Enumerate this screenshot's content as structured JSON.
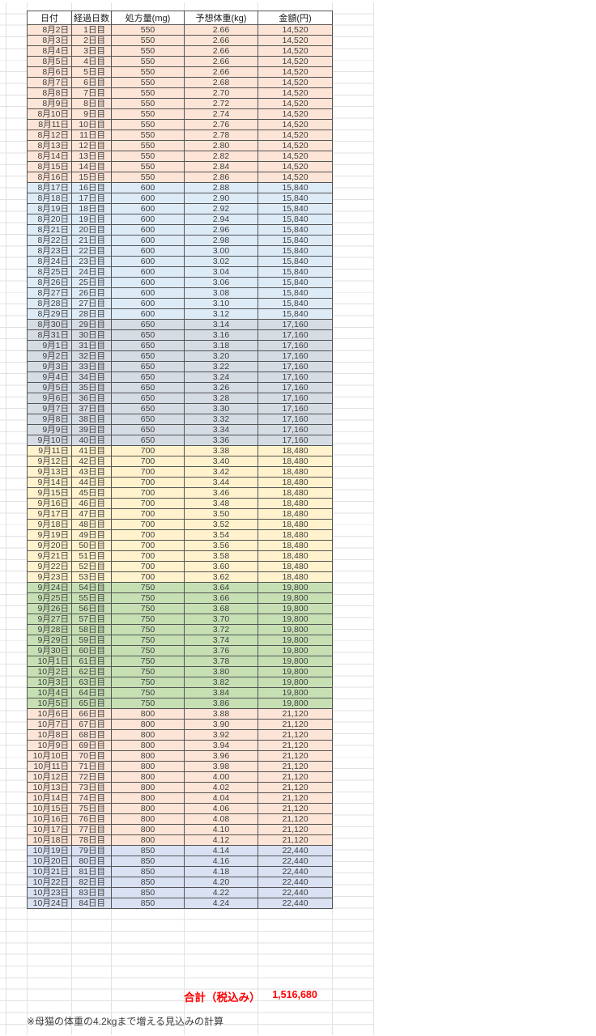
{
  "sheet": {
    "headers": [
      "日付",
      "経過日数",
      "処方量(mg)",
      "予想体重(kg)",
      "金額(円)"
    ],
    "section_colors": {
      "salmon": "#FCE4D6",
      "blue": "#DDEBF7",
      "gray": "#D6DCE4",
      "yellow": "#FFF2CC",
      "green": "#C6E0B4",
      "lavender": "#D9E1F2"
    },
    "rows": [
      [
        "8月2日",
        "1日目",
        "550",
        "2.66",
        "14,520",
        "salmon"
      ],
      [
        "8月3日",
        "2日目",
        "550",
        "2.66",
        "14,520",
        "salmon"
      ],
      [
        "8月4日",
        "3日目",
        "550",
        "2.66",
        "14,520",
        "salmon"
      ],
      [
        "8月5日",
        "4日目",
        "550",
        "2.66",
        "14,520",
        "salmon"
      ],
      [
        "8月6日",
        "5日目",
        "550",
        "2.66",
        "14,520",
        "salmon"
      ],
      [
        "8月7日",
        "6日目",
        "550",
        "2.68",
        "14,520",
        "salmon"
      ],
      [
        "8月8日",
        "7日目",
        "550",
        "2.70",
        "14,520",
        "salmon"
      ],
      [
        "8月9日",
        "8日目",
        "550",
        "2.72",
        "14,520",
        "salmon"
      ],
      [
        "8月10日",
        "9日目",
        "550",
        "2.74",
        "14,520",
        "salmon"
      ],
      [
        "8月11日",
        "10日目",
        "550",
        "2.76",
        "14,520",
        "salmon"
      ],
      [
        "8月12日",
        "11日目",
        "550",
        "2.78",
        "14,520",
        "salmon"
      ],
      [
        "8月13日",
        "12日目",
        "550",
        "2.80",
        "14,520",
        "salmon"
      ],
      [
        "8月14日",
        "13日目",
        "550",
        "2.82",
        "14,520",
        "salmon"
      ],
      [
        "8月15日",
        "14日目",
        "550",
        "2.84",
        "14,520",
        "salmon"
      ],
      [
        "8月16日",
        "15日目",
        "550",
        "2.86",
        "14,520",
        "salmon"
      ],
      [
        "8月17日",
        "16日目",
        "600",
        "2.88",
        "15,840",
        "blue"
      ],
      [
        "8月18日",
        "17日目",
        "600",
        "2.90",
        "15,840",
        "blue"
      ],
      [
        "8月19日",
        "18日目",
        "600",
        "2.92",
        "15,840",
        "blue"
      ],
      [
        "8月20日",
        "19日目",
        "600",
        "2.94",
        "15,840",
        "blue"
      ],
      [
        "8月21日",
        "20日目",
        "600",
        "2.96",
        "15,840",
        "blue"
      ],
      [
        "8月22日",
        "21日目",
        "600",
        "2.98",
        "15,840",
        "blue"
      ],
      [
        "8月23日",
        "22日目",
        "600",
        "3.00",
        "15,840",
        "blue"
      ],
      [
        "8月24日",
        "23日目",
        "600",
        "3.02",
        "15,840",
        "blue"
      ],
      [
        "8月25日",
        "24日目",
        "600",
        "3.04",
        "15,840",
        "blue"
      ],
      [
        "8月26日",
        "25日目",
        "600",
        "3.06",
        "15,840",
        "blue"
      ],
      [
        "8月27日",
        "26日目",
        "600",
        "3.08",
        "15,840",
        "blue"
      ],
      [
        "8月28日",
        "27日目",
        "600",
        "3.10",
        "15,840",
        "blue"
      ],
      [
        "8月29日",
        "28日目",
        "600",
        "3.12",
        "15,840",
        "blue"
      ],
      [
        "8月30日",
        "29日目",
        "650",
        "3.14",
        "17,160",
        "gray"
      ],
      [
        "8月31日",
        "30日目",
        "650",
        "3.16",
        "17,160",
        "gray"
      ],
      [
        "9月1日",
        "31日目",
        "650",
        "3.18",
        "17,160",
        "gray"
      ],
      [
        "9月2日",
        "32日目",
        "650",
        "3.20",
        "17,160",
        "gray"
      ],
      [
        "9月3日",
        "33日目",
        "650",
        "3.22",
        "17,160",
        "gray"
      ],
      [
        "9月4日",
        "34日目",
        "650",
        "3.24",
        "17,160",
        "gray"
      ],
      [
        "9月5日",
        "35日目",
        "650",
        "3.26",
        "17,160",
        "gray"
      ],
      [
        "9月6日",
        "36日目",
        "650",
        "3.28",
        "17,160",
        "gray"
      ],
      [
        "9月7日",
        "37日目",
        "650",
        "3.30",
        "17,160",
        "gray"
      ],
      [
        "9月8日",
        "38日目",
        "650",
        "3.32",
        "17,160",
        "gray"
      ],
      [
        "9月9日",
        "39日目",
        "650",
        "3.34",
        "17,160",
        "gray"
      ],
      [
        "9月10日",
        "40日目",
        "650",
        "3.36",
        "17,160",
        "gray"
      ],
      [
        "9月11日",
        "41日目",
        "700",
        "3.38",
        "18,480",
        "yellow"
      ],
      [
        "9月12日",
        "42日目",
        "700",
        "3.40",
        "18,480",
        "yellow"
      ],
      [
        "9月13日",
        "43日目",
        "700",
        "3.42",
        "18,480",
        "yellow"
      ],
      [
        "9月14日",
        "44日目",
        "700",
        "3.44",
        "18,480",
        "yellow"
      ],
      [
        "9月15日",
        "45日目",
        "700",
        "3.46",
        "18,480",
        "yellow"
      ],
      [
        "9月16日",
        "46日目",
        "700",
        "3.48",
        "18,480",
        "yellow"
      ],
      [
        "9月17日",
        "47日目",
        "700",
        "3.50",
        "18,480",
        "yellow"
      ],
      [
        "9月18日",
        "48日目",
        "700",
        "3.52",
        "18,480",
        "yellow"
      ],
      [
        "9月19日",
        "49日目",
        "700",
        "3.54",
        "18,480",
        "yellow"
      ],
      [
        "9月20日",
        "50日目",
        "700",
        "3.56",
        "18,480",
        "yellow"
      ],
      [
        "9月21日",
        "51日目",
        "700",
        "3.58",
        "18,480",
        "yellow"
      ],
      [
        "9月22日",
        "52日目",
        "700",
        "3.60",
        "18,480",
        "yellow"
      ],
      [
        "9月23日",
        "53日目",
        "700",
        "3.62",
        "18,480",
        "yellow"
      ],
      [
        "9月24日",
        "54日目",
        "750",
        "3.64",
        "19,800",
        "green"
      ],
      [
        "9月25日",
        "55日目",
        "750",
        "3.66",
        "19,800",
        "green"
      ],
      [
        "9月26日",
        "56日目",
        "750",
        "3.68",
        "19,800",
        "green"
      ],
      [
        "9月27日",
        "57日目",
        "750",
        "3.70",
        "19,800",
        "green"
      ],
      [
        "9月28日",
        "58日目",
        "750",
        "3.72",
        "19,800",
        "green"
      ],
      [
        "9月29日",
        "59日目",
        "750",
        "3.74",
        "19,800",
        "green"
      ],
      [
        "9月30日",
        "60日目",
        "750",
        "3.76",
        "19,800",
        "green"
      ],
      [
        "10月1日",
        "61日目",
        "750",
        "3.78",
        "19,800",
        "green"
      ],
      [
        "10月2日",
        "62日目",
        "750",
        "3.80",
        "19,800",
        "green"
      ],
      [
        "10月3日",
        "63日目",
        "750",
        "3.82",
        "19,800",
        "green"
      ],
      [
        "10月4日",
        "64日目",
        "750",
        "3.84",
        "19,800",
        "green"
      ],
      [
        "10月5日",
        "65日目",
        "750",
        "3.86",
        "19,800",
        "green"
      ],
      [
        "10月6日",
        "66日目",
        "800",
        "3.88",
        "21,120",
        "salmon"
      ],
      [
        "10月7日",
        "67日目",
        "800",
        "3.90",
        "21,120",
        "salmon"
      ],
      [
        "10月8日",
        "68日目",
        "800",
        "3.92",
        "21,120",
        "salmon"
      ],
      [
        "10月9日",
        "69日目",
        "800",
        "3.94",
        "21,120",
        "salmon"
      ],
      [
        "10月10日",
        "70日目",
        "800",
        "3.96",
        "21,120",
        "salmon"
      ],
      [
        "10月11日",
        "71日目",
        "800",
        "3.98",
        "21,120",
        "salmon"
      ],
      [
        "10月12日",
        "72日目",
        "800",
        "4.00",
        "21,120",
        "salmon"
      ],
      [
        "10月13日",
        "73日目",
        "800",
        "4.02",
        "21,120",
        "salmon"
      ],
      [
        "10月14日",
        "74日目",
        "800",
        "4.04",
        "21,120",
        "salmon"
      ],
      [
        "10月15日",
        "75日目",
        "800",
        "4.06",
        "21,120",
        "salmon"
      ],
      [
        "10月16日",
        "76日目",
        "800",
        "4.08",
        "21,120",
        "salmon"
      ],
      [
        "10月17日",
        "77日目",
        "800",
        "4.10",
        "21,120",
        "salmon"
      ],
      [
        "10月18日",
        "78日目",
        "800",
        "4.12",
        "21,120",
        "salmon"
      ],
      [
        "10月19日",
        "79日目",
        "850",
        "4.14",
        "22,440",
        "lavender"
      ],
      [
        "10月20日",
        "80日目",
        "850",
        "4.16",
        "22,440",
        "lavender"
      ],
      [
        "10月21日",
        "81日目",
        "850",
        "4.18",
        "22,440",
        "lavender"
      ],
      [
        "10月22日",
        "82日目",
        "850",
        "4.20",
        "22,440",
        "lavender"
      ],
      [
        "10月23日",
        "83日目",
        "850",
        "4.22",
        "22,440",
        "lavender"
      ],
      [
        "10月24日",
        "84日目",
        "850",
        "4.24",
        "22,440",
        "lavender"
      ]
    ],
    "total": {
      "label": "合計（税込み）",
      "value": "1,516,680",
      "color": "#FF0000"
    },
    "footnote": "※母猫の体重の4.2kgまで増える見込みの計算"
  }
}
